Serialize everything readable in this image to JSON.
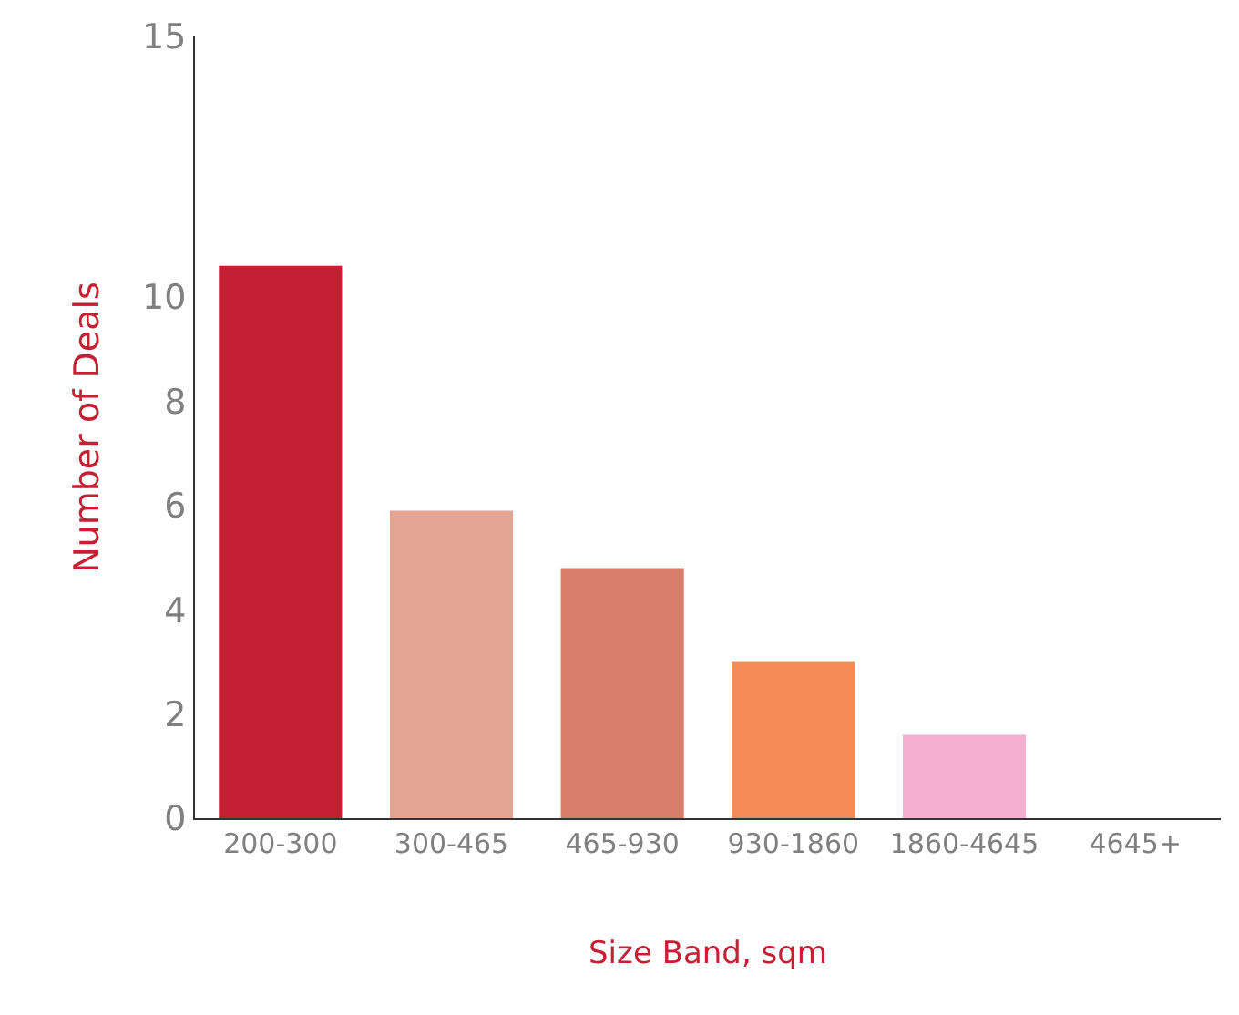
{
  "chart_data": {
    "type": "bar",
    "xlabel": "Size Band, sqm",
    "ylabel": "Number of Deals",
    "categories": [
      "200-300",
      "300-465",
      "465-930",
      "930-1860",
      "1860-4645",
      "4645+"
    ],
    "values": [
      10.6,
      5.9,
      4.8,
      3.0,
      1.6,
      0
    ],
    "colors": [
      "#c41f33",
      "#e4a393",
      "#d97d6b",
      "#f68b5a",
      "#f3aed0",
      "#f3aed0"
    ],
    "ylim": [
      0,
      15
    ],
    "yticks": [
      0,
      2,
      4,
      6,
      8,
      10,
      15
    ]
  }
}
